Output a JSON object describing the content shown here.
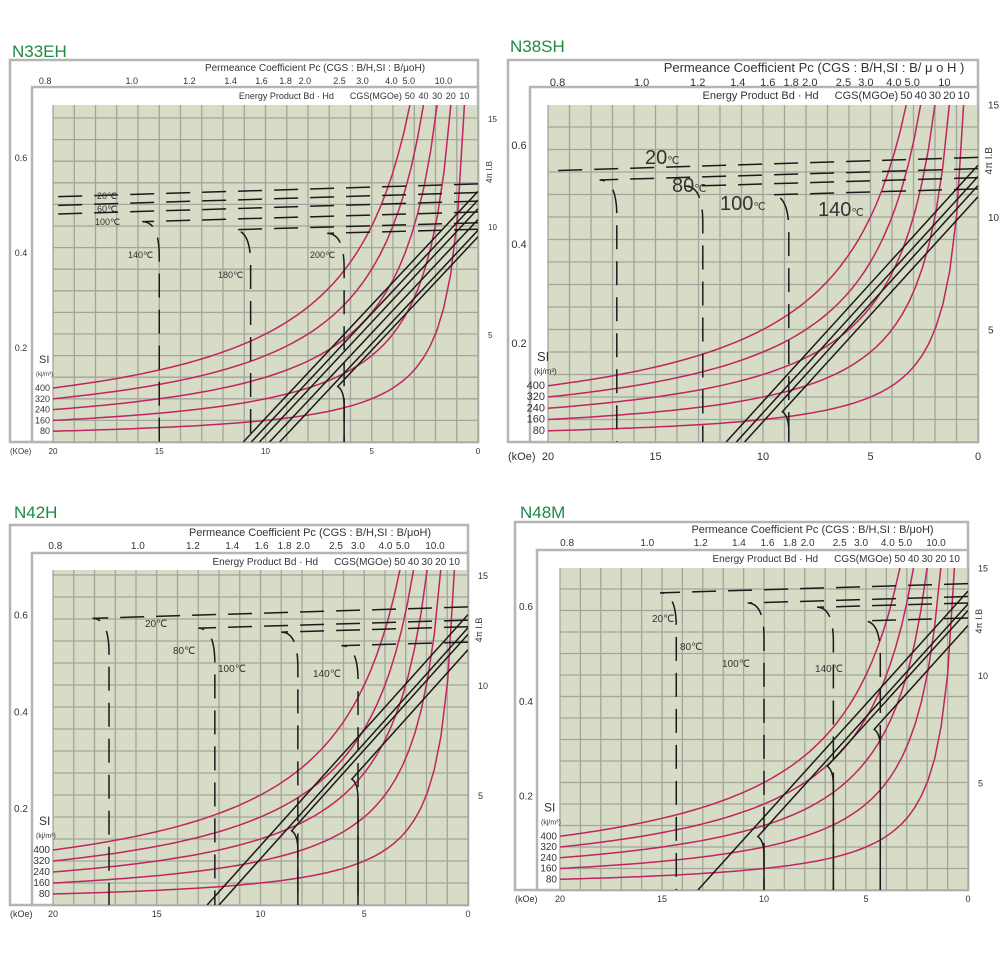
{
  "colors": {
    "grid_bg": "#d6dcc5",
    "grid_line": "#a3a59c",
    "energy_curve": "#c2245f",
    "demag_curve": "#1a1a1a",
    "title": "#1d8a43"
  },
  "labels": {
    "permeance": "Permeance Coefficient Pc (CGS : B/H,SI : B/μoH)",
    "permeance_p2": "Permeance Coefficient Pc (CGS : B/H,SI : B/ μ o H )",
    "energy": "Energy Product Bd · Hd",
    "cgs": "CGS(MGOe)",
    "si": "SI",
    "si_unit": "(kj/m³)",
    "koe": "(kOe)",
    "koe_p1": "(KOe)",
    "right_axis": "4π I.B",
    "deg": "℃"
  },
  "chart_data": [
    {
      "type": "line",
      "title": "N33EH",
      "xlabel": "(KOe)",
      "xlim": [
        20,
        0
      ],
      "x_ticks": [
        20,
        15,
        10,
        5,
        0
      ],
      "left_ticks": [
        0.2,
        0.4,
        0.6
      ],
      "right_label": "4π I.B",
      "right_ticks": [
        5,
        10,
        15
      ],
      "ylim_kG": [
        0,
        15.6
      ],
      "pc_ticks": [
        "0.8",
        "1.0",
        "1.2",
        "1.4",
        "1.6",
        "1.8",
        "2.0",
        "2.5",
        "3.0",
        "4.0",
        "5.0",
        "10.0"
      ],
      "energy_mgoe": [
        50,
        40,
        30,
        20,
        10
      ],
      "energy_si": [
        400,
        320,
        240,
        160,
        80
      ],
      "temperatures": [
        {
          "t": "20",
          "Br_kG": 11.6,
          "Hcj_kOe": 30
        },
        {
          "t": "60",
          "Br_kG": 11.2,
          "Hcj_kOe": 26
        },
        {
          "t": "100",
          "Br_kG": 10.8,
          "Hcj_kOe": 22
        },
        {
          "t": "140",
          "Br_kG": 10.3,
          "Hcj_kOe": 15.0
        },
        {
          "t": "180",
          "Br_kG": 9.8,
          "Hcj_kOe": 10.7
        },
        {
          "t": "200",
          "Br_kG": 9.5,
          "Hcj_kOe": 6.3
        }
      ]
    },
    {
      "type": "line",
      "title": "N38SH",
      "xlabel": "(kOe)",
      "xlim": [
        20,
        0
      ],
      "x_ticks": [
        20,
        15,
        10,
        5,
        0
      ],
      "left_ticks": [
        0.2,
        0.4,
        0.6
      ],
      "right_label": "4π I.B",
      "right_ticks": [
        5,
        10,
        15
      ],
      "ylim_kG": [
        0,
        15
      ],
      "pc_ticks": [
        "0.8",
        "1.0",
        "1.2",
        "1.4",
        "1.6",
        "1.8",
        "2.0",
        "2.5",
        "3.0",
        "4.0",
        "5.0",
        "10"
      ],
      "energy_mgoe": [
        50,
        40,
        30,
        20,
        10
      ],
      "energy_si": [
        400,
        320,
        240,
        160,
        80
      ],
      "temperatures": [
        {
          "t": "20",
          "Br_kG": 12.3,
          "Hcj_kOe": 25
        },
        {
          "t": "80",
          "Br_kG": 11.8,
          "Hcj_kOe": 16.8
        },
        {
          "t": "100",
          "Br_kG": 11.4,
          "Hcj_kOe": 12.8
        },
        {
          "t": "140",
          "Br_kG": 10.9,
          "Hcj_kOe": 8.8
        }
      ]
    },
    {
      "type": "line",
      "title": "N42H",
      "xlabel": "(kOe)",
      "xlim": [
        20,
        0
      ],
      "x_ticks": [
        20,
        15,
        10,
        5,
        0
      ],
      "left_ticks": [
        0.2,
        0.4,
        0.6
      ],
      "right_label": "4π I.B",
      "right_ticks": [
        5,
        10,
        15
      ],
      "ylim_kG": [
        0,
        15.2
      ],
      "pc_ticks": [
        "0.8",
        "1.0",
        "1.2",
        "1.4",
        "1.6",
        "1.8",
        "2.0",
        "2.5",
        "3.0",
        "4.0",
        "5.0",
        "10.0"
      ],
      "energy_mgoe": [
        50,
        40,
        30,
        20,
        10
      ],
      "energy_si": [
        400,
        320,
        240,
        160,
        80
      ],
      "temperatures": [
        {
          "t": "20",
          "Br_kG": 13.2,
          "Hcj_kOe": 17.3
        },
        {
          "t": "80",
          "Br_kG": 12.6,
          "Hcj_kOe": 12.2
        },
        {
          "t": "100",
          "Br_kG": 12.3,
          "Hcj_kOe": 8.2
        },
        {
          "t": "140",
          "Br_kG": 11.6,
          "Hcj_kOe": 5.3
        }
      ]
    },
    {
      "type": "line",
      "title": "N48M",
      "xlabel": "(kOe)",
      "xlim": [
        20,
        0
      ],
      "x_ticks": [
        20,
        15,
        10,
        5,
        0
      ],
      "left_ticks": [
        0.2,
        0.4,
        0.6
      ],
      "right_label": "4π I.B",
      "right_ticks": [
        5,
        10,
        15
      ],
      "ylim_kG": [
        0,
        15
      ],
      "pc_ticks": [
        "0.8",
        "1.0",
        "1.2",
        "1.4",
        "1.6",
        "1.8",
        "2.0",
        "2.5",
        "3.0",
        "4.0",
        "5.0",
        "10.0"
      ],
      "energy_mgoe": [
        50,
        40,
        30,
        20,
        10
      ],
      "energy_si": [
        400,
        320,
        240,
        160,
        80
      ],
      "temperatures": [
        {
          "t": "20",
          "Br_kG": 13.9,
          "Hcj_kOe": 14.3
        },
        {
          "t": "80",
          "Br_kG": 13.3,
          "Hcj_kOe": 10.0
        },
        {
          "t": "100",
          "Br_kG": 13.0,
          "Hcj_kOe": 6.6
        },
        {
          "t": "140",
          "Br_kG": 12.3,
          "Hcj_kOe": 4.3
        }
      ]
    }
  ]
}
